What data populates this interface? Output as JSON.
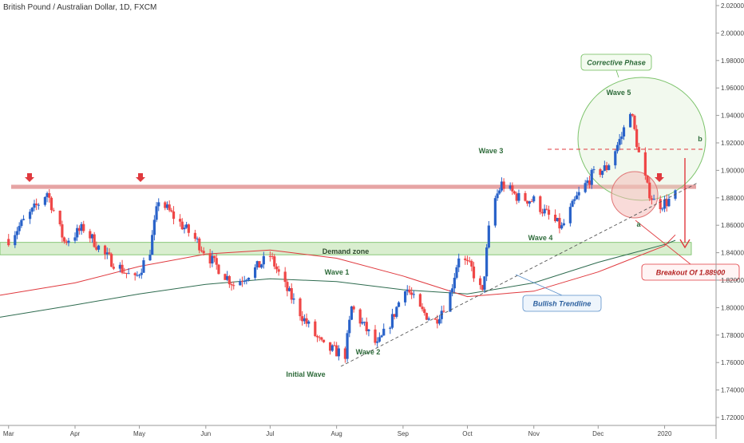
{
  "chart_data": {
    "type": "candlestick",
    "title": "British Pound / Australian Dollar, 1D, FXCM",
    "xlabel": "",
    "ylabel": "",
    "ylim": [
      1.71,
      2.03
    ],
    "y_ticks": [
      "1.72000",
      "1.74000",
      "1.76000",
      "1.78000",
      "1.80000",
      "1.82000",
      "1.84000",
      "1.86000",
      "1.88000",
      "1.90000",
      "1.92000",
      "1.94000",
      "1.96000",
      "1.98000",
      "2.00000",
      "2.02000"
    ],
    "x_ticks": [
      "Mar",
      "Apr",
      "May",
      "Jun",
      "Jul",
      "Aug",
      "Sep",
      "Oct",
      "Nov",
      "Dec",
      "2020"
    ],
    "grid": false,
    "colors": {
      "up": "#2962c9",
      "down": "#ef4747",
      "sma_fast": "#e0393e",
      "sma_slow": "#2e6b4f",
      "resistance": "#e39a9a",
      "demand_zone": "#b9e0a8"
    },
    "keypoints": [
      [
        "2019-03-01",
        1.85
      ],
      [
        "2019-03-12",
        1.87
      ],
      [
        "2019-03-19",
        1.884
      ],
      [
        "2019-03-27",
        1.848
      ],
      [
        "2019-04-05",
        1.858
      ],
      [
        "2019-04-15",
        1.838
      ],
      [
        "2019-04-29",
        1.82
      ],
      [
        "2019-05-06",
        1.842
      ],
      [
        "2019-05-10",
        1.879
      ],
      [
        "2019-05-16",
        1.868
      ],
      [
        "2019-05-27",
        1.85
      ],
      [
        "2019-06-05",
        1.832
      ],
      [
        "2019-06-14",
        1.817
      ],
      [
        "2019-06-24",
        1.828
      ],
      [
        "2019-07-01",
        1.838
      ],
      [
        "2019-07-07",
        1.818
      ],
      [
        "2019-07-17",
        1.791
      ],
      [
        "2019-07-26",
        1.771
      ],
      [
        "2019-08-05",
        1.766
      ],
      [
        "2019-08-08",
        1.8
      ],
      [
        "2019-08-14",
        1.786
      ],
      [
        "2019-08-20",
        1.772
      ],
      [
        "2019-08-27",
        1.792
      ],
      [
        "2019-09-02",
        1.816
      ],
      [
        "2019-09-09",
        1.798
      ],
      [
        "2019-09-16",
        1.79
      ],
      [
        "2019-09-23",
        1.81
      ],
      [
        "2019-09-27",
        1.838
      ],
      [
        "2019-10-03",
        1.828
      ],
      [
        "2019-10-08",
        1.81
      ],
      [
        "2019-10-12",
        1.872
      ],
      [
        "2019-10-17",
        1.89
      ],
      [
        "2019-10-25",
        1.88
      ],
      [
        "2019-11-01",
        1.878
      ],
      [
        "2019-11-07",
        1.868
      ],
      [
        "2019-11-14",
        1.858
      ],
      [
        "2019-11-21",
        1.88
      ],
      [
        "2019-11-28",
        1.896
      ],
      [
        "2019-12-05",
        1.902
      ],
      [
        "2019-12-12",
        1.925
      ],
      [
        "2019-12-16",
        1.945
      ],
      [
        "2019-12-20",
        1.912
      ],
      [
        "2019-12-24",
        1.887
      ],
      [
        "2019-12-28",
        1.874
      ],
      [
        "2020-01-02",
        1.877
      ],
      [
        "2020-01-06",
        1.882
      ]
    ],
    "sma_fast": [
      [
        "2019-02-25",
        1.809
      ],
      [
        "2019-04-01",
        1.818
      ],
      [
        "2019-05-01",
        1.83
      ],
      [
        "2019-06-01",
        1.839
      ],
      [
        "2019-07-01",
        1.842
      ],
      [
        "2019-08-01",
        1.836
      ],
      [
        "2019-09-01",
        1.823
      ],
      [
        "2019-10-01",
        1.808
      ],
      [
        "2019-11-01",
        1.812
      ],
      [
        "2019-12-01",
        1.826
      ],
      [
        "2020-01-01",
        1.845
      ],
      [
        "2020-01-06",
        1.853
      ]
    ],
    "sma_slow": [
      [
        "2019-02-25",
        1.793
      ],
      [
        "2019-04-01",
        1.802
      ],
      [
        "2019-05-01",
        1.81
      ],
      [
        "2019-06-01",
        1.817
      ],
      [
        "2019-07-01",
        1.821
      ],
      [
        "2019-08-01",
        1.819
      ],
      [
        "2019-09-01",
        1.813
      ],
      [
        "2019-10-01",
        1.81
      ],
      [
        "2019-11-01",
        1.818
      ],
      [
        "2019-12-01",
        1.833
      ],
      [
        "2020-01-01",
        1.846
      ],
      [
        "2020-01-06",
        1.849
      ]
    ],
    "annotations": {
      "demand_zone": "Demand zone",
      "wave_1": "Wave 1",
      "wave_2": "Wave 2",
      "wave_3": "Wave 3",
      "wave_4": "Wave 4",
      "wave_5": "Wave 5",
      "initial_wave": "Initial Wave",
      "corrective_phase": "Corrective Phase",
      "bullish_trendline": "Bullish Trendline",
      "breakout": "Breakout Of 1.88900",
      "label_a": "a",
      "label_b": "b"
    }
  }
}
